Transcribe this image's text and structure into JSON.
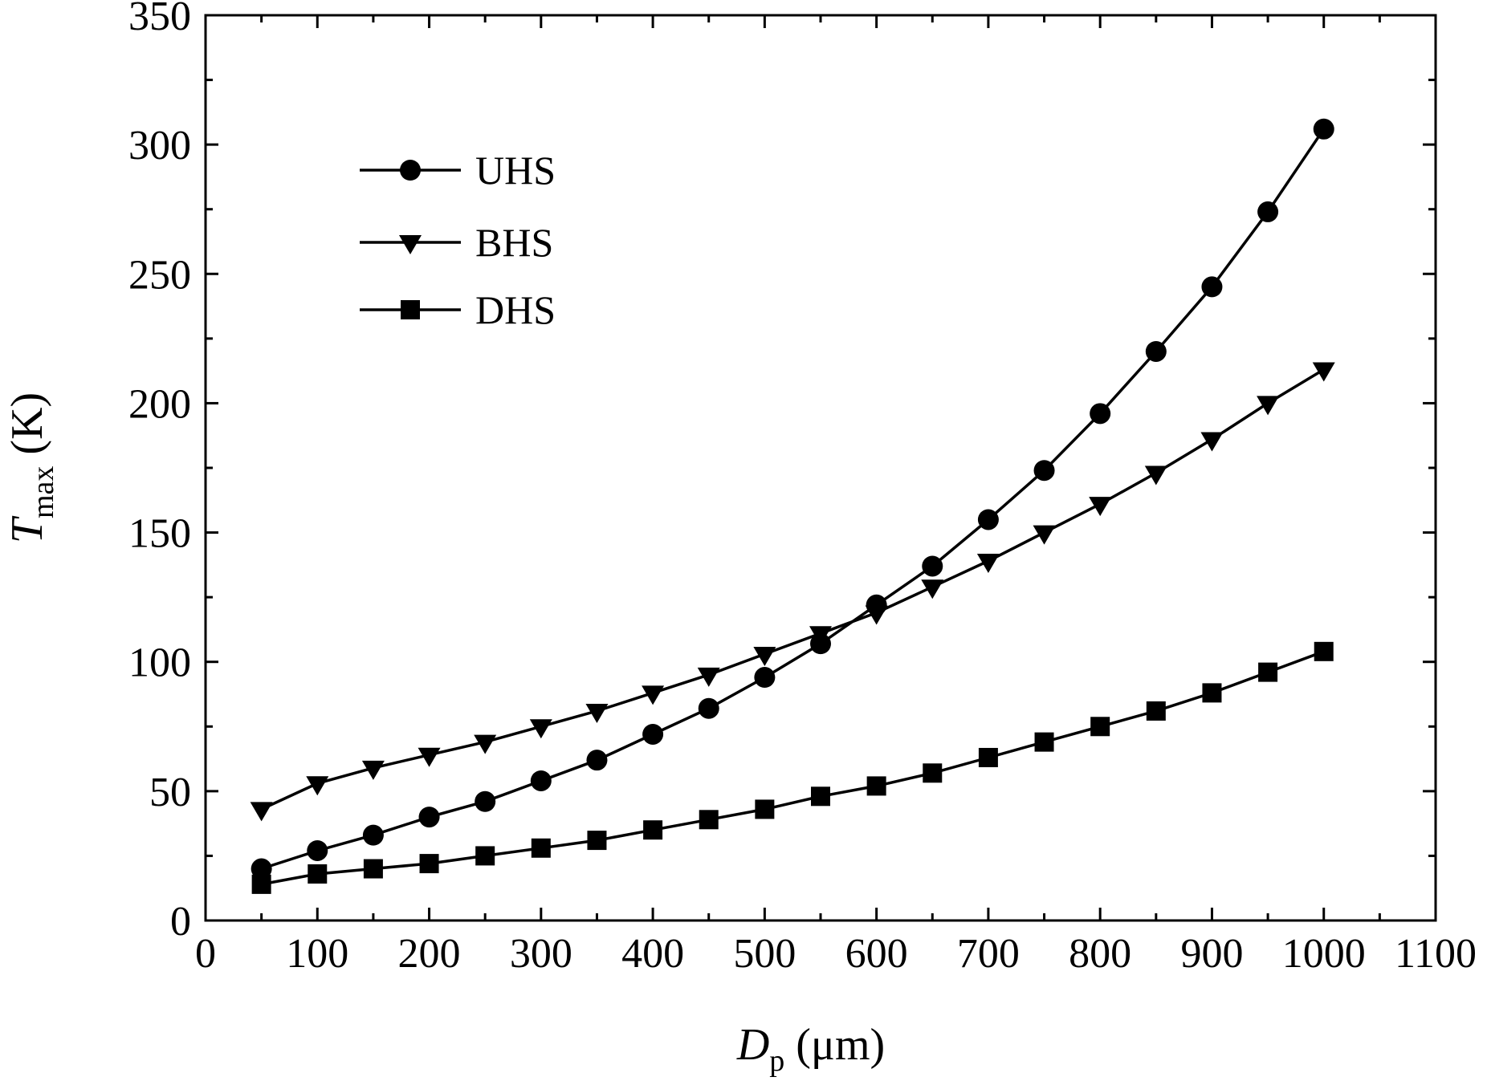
{
  "chart_data": {
    "type": "line",
    "title": "",
    "xlabel": {
      "main": "D",
      "sub": "p",
      "unit": "(μm)"
    },
    "ylabel": {
      "main": "T",
      "sub": "max",
      "unit": "(K)"
    },
    "xlim": [
      0,
      1100
    ],
    "ylim": [
      0,
      350
    ],
    "x_ticks": [
      0,
      100,
      200,
      300,
      400,
      500,
      600,
      700,
      800,
      900,
      1000,
      1100
    ],
    "y_ticks": [
      0,
      50,
      100,
      150,
      200,
      250,
      300,
      350
    ],
    "grid": false,
    "legend_position": "top-left",
    "x": [
      50,
      100,
      150,
      200,
      250,
      300,
      350,
      400,
      450,
      500,
      550,
      600,
      650,
      700,
      750,
      800,
      850,
      900,
      950,
      1000
    ],
    "series": [
      {
        "name": "UHS",
        "marker": "circle",
        "values": [
          20,
          27,
          33,
          40,
          46,
          54,
          62,
          72,
          82,
          94,
          107,
          122,
          137,
          155,
          174,
          196,
          220,
          245,
          274,
          306
        ]
      },
      {
        "name": "BHS",
        "marker": "triangle-down",
        "values": [
          43,
          53,
          59,
          64,
          69,
          75,
          81,
          88,
          95,
          103,
          111,
          119,
          129,
          139,
          150,
          161,
          173,
          186,
          200,
          213
        ]
      },
      {
        "name": "DHS",
        "marker": "square",
        "values": [
          14,
          18,
          20,
          22,
          25,
          28,
          31,
          35,
          39,
          43,
          48,
          52,
          57,
          63,
          69,
          75,
          81,
          88,
          96,
          104
        ]
      }
    ],
    "colors": {
      "line": "#000000",
      "marker": "#000000",
      "background": "#ffffff"
    }
  }
}
